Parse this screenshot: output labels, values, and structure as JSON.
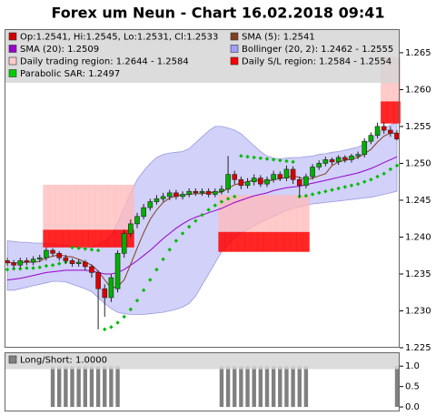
{
  "chart_data": [
    {
      "type": "candlestick",
      "title": "Forex um Neun - Chart 16.02.2018 09:41",
      "ylim": [
        1.225,
        1.2682
      ],
      "yticks": [
        1.225,
        {
          "value": 1.23,
          "label": "1.230"
        },
        1.235,
        {
          "value": 1.24,
          "label": "1.240"
        },
        1.245,
        {
          "value": 1.25,
          "label": "1.250"
        },
        1.255,
        {
          "value": 1.26,
          "label": "1.260"
        },
        1.265
      ],
      "legend": [
        {
          "text": "Op:1.2541, Hi:1.2545, Lo:1.2531, Cl:1.2533",
          "color": "#cc0000"
        },
        {
          "text": "SMA (5): 1.2541",
          "color": "#804020"
        },
        {
          "text": "SMA (20): 1.2509",
          "color": "#9900cc"
        },
        {
          "text": "Bollinger (20, 2): 1.2462 - 1.2555",
          "color": "#a0a0ff"
        },
        {
          "text": "Daily trading region: 1.2644 - 1.2584",
          "color": "#ffcccc"
        },
        {
          "text": "Daily S/L region: 1.2584 - 1.2554",
          "color": "#ff0000"
        },
        {
          "text": "Parabolic SAR: 1.2497",
          "color": "#00cc00"
        }
      ],
      "up_color": "#00b000",
      "down_color": "#dd0000",
      "candles": {
        "open": [
          1.2368,
          1.2365,
          1.2362,
          1.2368,
          1.2366,
          1.237,
          1.2372,
          1.2382,
          1.2378,
          1.2372,
          1.2368,
          1.2364,
          1.2366,
          1.236,
          1.2352,
          1.233,
          1.2318,
          1.233,
          1.2378,
          1.2405,
          1.2418,
          1.2428,
          1.244,
          1.2448,
          1.2452,
          1.2455,
          1.246,
          1.2455,
          1.2458,
          1.2462,
          1.246,
          1.2462,
          1.2458,
          1.2462,
          1.2465,
          1.2485,
          1.2478,
          1.247,
          1.2475,
          1.248,
          1.2472,
          1.2478,
          1.2485,
          1.248,
          1.2492,
          1.2478,
          1.247,
          1.2482,
          1.2495,
          1.25,
          1.2505,
          1.2502,
          1.2508,
          1.2505,
          1.251,
          1.2512,
          1.253,
          1.2538,
          1.255,
          1.2545,
          1.2541
        ],
        "high": [
          1.2372,
          1.2369,
          1.2372,
          1.2372,
          1.2374,
          1.2376,
          1.2386,
          1.2385,
          1.2381,
          1.2376,
          1.2371,
          1.237,
          1.2369,
          1.2363,
          1.2355,
          1.2336,
          1.235,
          1.2382,
          1.241,
          1.2424,
          1.2433,
          1.2445,
          1.2452,
          1.2457,
          1.246,
          1.2464,
          1.2464,
          1.2462,
          1.2466,
          1.2466,
          1.2466,
          1.2466,
          1.2466,
          1.247,
          1.251,
          1.249,
          1.2482,
          1.248,
          1.2485,
          1.2484,
          1.2482,
          1.249,
          1.2489,
          1.2497,
          1.2496,
          1.2482,
          1.2486,
          1.2499,
          1.2504,
          1.2509,
          1.2508,
          1.2511,
          1.2511,
          1.2513,
          1.2516,
          1.2534,
          1.2542,
          1.2555,
          1.2556,
          1.255,
          1.2545
        ],
        "low": [
          1.2361,
          1.2358,
          1.2358,
          1.2362,
          1.2362,
          1.2366,
          1.2368,
          1.2374,
          1.2368,
          1.2364,
          1.236,
          1.236,
          1.2355,
          1.2345,
          1.2275,
          1.2292,
          1.2312,
          1.2325,
          1.2372,
          1.24,
          1.2412,
          1.2424,
          1.2436,
          1.2444,
          1.2448,
          1.245,
          1.2451,
          1.2451,
          1.2454,
          1.2456,
          1.2456,
          1.2454,
          1.2454,
          1.2458,
          1.246,
          1.2472,
          1.2465,
          1.2466,
          1.247,
          1.2468,
          1.2468,
          1.2474,
          1.2476,
          1.2476,
          1.2472,
          1.2455,
          1.2466,
          1.2478,
          1.2491,
          1.2496,
          1.2498,
          1.2498,
          1.2501,
          1.2501,
          1.2506,
          1.2508,
          1.2526,
          1.2534,
          1.254,
          1.2536,
          1.2531
        ],
        "close": [
          1.2365,
          1.2362,
          1.2368,
          1.2366,
          1.237,
          1.2372,
          1.2382,
          1.2378,
          1.2372,
          1.2368,
          1.2364,
          1.2366,
          1.236,
          1.2352,
          1.233,
          1.2318,
          1.2345,
          1.2378,
          1.2405,
          1.2418,
          1.2428,
          1.244,
          1.2448,
          1.2452,
          1.2455,
          1.246,
          1.2455,
          1.2458,
          1.2462,
          1.246,
          1.2462,
          1.2458,
          1.2462,
          1.2465,
          1.2485,
          1.2478,
          1.247,
          1.2475,
          1.248,
          1.2472,
          1.2478,
          1.2485,
          1.248,
          1.2492,
          1.2478,
          1.247,
          1.2482,
          1.2495,
          1.25,
          1.2505,
          1.2502,
          1.2508,
          1.2505,
          1.251,
          1.2512,
          1.253,
          1.2538,
          1.255,
          1.2545,
          1.2541,
          1.2533
        ]
      },
      "sma5": {
        "color": "#804020",
        "values": [
          1.2366,
          1.2365,
          1.2365,
          1.2366,
          1.2366,
          1.2367,
          1.2372,
          1.2374,
          1.2376,
          1.2374,
          1.2373,
          1.237,
          1.2366,
          1.2362,
          1.2354,
          1.2342,
          1.2331,
          1.2333,
          1.2342,
          1.2363,
          1.2385,
          1.2406,
          1.2424,
          1.2437,
          1.2447,
          1.2453,
          1.2456,
          1.2457,
          1.2458,
          1.2459,
          1.2459,
          1.246,
          1.2461,
          1.2461,
          1.2466,
          1.2471,
          1.2473,
          1.2475,
          1.2478,
          1.2476,
          1.2475,
          1.2478,
          1.2479,
          1.2481,
          1.2483,
          1.2481,
          1.2478,
          1.248,
          1.2483,
          1.2486,
          1.2497,
          1.2502,
          1.2504,
          1.2506,
          1.2508,
          1.2513,
          1.2519,
          1.2529,
          1.2537,
          1.2541,
          1.2541
        ]
      },
      "sma20": {
        "color": "#9900cc",
        "values": [
          1.2342,
          1.2343,
          1.2344,
          1.2346,
          1.2348,
          1.235,
          1.2352,
          1.2353,
          1.2354,
          1.2355,
          1.2355,
          1.2355,
          1.2355,
          1.2354,
          1.2352,
          1.235,
          1.235,
          1.2352,
          1.2356,
          1.2362,
          1.2368,
          1.2375,
          1.2382,
          1.239,
          1.2398,
          1.2405,
          1.2412,
          1.2418,
          1.2423,
          1.2427,
          1.243,
          1.2433,
          1.2436,
          1.2439,
          1.2443,
          1.2447,
          1.245,
          1.2453,
          1.2456,
          1.2458,
          1.246,
          1.2463,
          1.2465,
          1.2467,
          1.2468,
          1.2469,
          1.2471,
          1.2473,
          1.2475,
          1.2477,
          1.2479,
          1.2481,
          1.2483,
          1.2485,
          1.2487,
          1.249,
          1.2493,
          1.2497,
          1.2501,
          1.2505,
          1.2509
        ]
      },
      "bollinger": {
        "color": "#ccccf8",
        "line_color": "#9a9ae0",
        "upper": [
          1.2395,
          1.2394,
          1.2393,
          1.2393,
          1.2392,
          1.2392,
          1.2392,
          1.2391,
          1.239,
          1.2389,
          1.2388,
          1.2386,
          1.2385,
          1.2386,
          1.239,
          1.2395,
          1.2402,
          1.242,
          1.244,
          1.246,
          1.2478,
          1.249,
          1.25,
          1.2508,
          1.2512,
          1.2514,
          1.2515,
          1.2516,
          1.252,
          1.2528,
          1.2536,
          1.2544,
          1.255,
          1.255,
          1.2548,
          1.2545,
          1.254,
          1.2532,
          1.2524,
          1.2516,
          1.251,
          1.2507,
          1.2506,
          1.2507,
          1.2508,
          1.2508,
          1.2509,
          1.251,
          1.2512,
          1.2513,
          1.2515,
          1.2516,
          1.2518,
          1.252,
          1.2522,
          1.2526,
          1.2532,
          1.254,
          1.2547,
          1.2552,
          1.2555
        ],
        "lower": [
          1.2328,
          1.2328,
          1.233,
          1.2332,
          1.2334,
          1.2336,
          1.2338,
          1.234,
          1.234,
          1.2339,
          1.2336,
          1.2333,
          1.233,
          1.2326,
          1.2318,
          1.231,
          1.2303,
          1.2298,
          1.2296,
          1.2295,
          1.2295,
          1.2295,
          1.2296,
          1.2297,
          1.2298,
          1.23,
          1.2302,
          1.2305,
          1.231,
          1.232,
          1.2335,
          1.235,
          1.2365,
          1.238,
          1.239,
          1.2398,
          1.2405,
          1.241,
          1.2415,
          1.242,
          1.2424,
          1.2428,
          1.2432,
          1.2436,
          1.2439,
          1.2441,
          1.2443,
          1.2445,
          1.2446,
          1.2447,
          1.2448,
          1.2449,
          1.245,
          1.2451,
          1.2452,
          1.2453,
          1.2454,
          1.2456,
          1.2458,
          1.246,
          1.2462
        ]
      },
      "trading_region": {
        "color": "#ffb8b8",
        "upper": [
          null,
          null,
          null,
          null,
          null,
          null,
          1.2471,
          1.2471,
          1.2471,
          1.2471,
          1.2471,
          1.2471,
          1.2471,
          1.2471,
          1.2471,
          1.2471,
          1.2471,
          1.2471,
          1.2471,
          1.2471,
          null,
          null,
          null,
          null,
          null,
          null,
          null,
          null,
          null,
          null,
          null,
          null,
          null,
          1.2457,
          1.2457,
          1.2457,
          1.2457,
          1.2457,
          1.2457,
          1.2457,
          1.2457,
          1.2457,
          1.2457,
          1.2457,
          1.2457,
          1.2457,
          1.2457,
          null,
          null,
          null,
          null,
          null,
          null,
          null,
          null,
          null,
          null,
          null,
          1.2644,
          1.2644,
          1.2644
        ],
        "lower": [
          null,
          null,
          null,
          null,
          null,
          null,
          1.241,
          1.241,
          1.241,
          1.241,
          1.241,
          1.241,
          1.241,
          1.241,
          1.241,
          1.241,
          1.241,
          1.241,
          1.241,
          1.241,
          null,
          null,
          null,
          null,
          null,
          null,
          null,
          null,
          null,
          null,
          null,
          null,
          null,
          1.2407,
          1.2407,
          1.2407,
          1.2407,
          1.2407,
          1.2407,
          1.2407,
          1.2407,
          1.2407,
          1.2407,
          1.2407,
          1.2407,
          1.2407,
          1.2407,
          null,
          null,
          null,
          null,
          null,
          null,
          null,
          null,
          null,
          null,
          null,
          1.2584,
          1.2584,
          1.2584
        ]
      },
      "sl_region": {
        "color": "#ff0000",
        "upper": [
          null,
          null,
          null,
          null,
          null,
          null,
          1.241,
          1.241,
          1.241,
          1.241,
          1.241,
          1.241,
          1.241,
          1.241,
          1.241,
          1.241,
          1.241,
          1.241,
          1.241,
          1.241,
          null,
          null,
          null,
          null,
          null,
          null,
          null,
          null,
          null,
          null,
          null,
          null,
          null,
          1.2407,
          1.2407,
          1.2407,
          1.2407,
          1.2407,
          1.2407,
          1.2407,
          1.2407,
          1.2407,
          1.2407,
          1.2407,
          1.2407,
          1.2407,
          1.2407,
          null,
          null,
          null,
          null,
          null,
          null,
          null,
          null,
          null,
          null,
          null,
          1.2584,
          1.2584,
          1.2584
        ],
        "lower": [
          null,
          null,
          null,
          null,
          null,
          null,
          1.2386,
          1.2386,
          1.2386,
          1.2386,
          1.2386,
          1.2386,
          1.2386,
          1.2386,
          1.2386,
          1.2386,
          1.2386,
          1.2386,
          1.2386,
          1.2386,
          null,
          null,
          null,
          null,
          null,
          null,
          null,
          null,
          null,
          null,
          null,
          null,
          null,
          1.238,
          1.238,
          1.238,
          1.238,
          1.238,
          1.238,
          1.238,
          1.238,
          1.238,
          1.238,
          1.238,
          1.238,
          1.238,
          1.238,
          null,
          null,
          null,
          null,
          null,
          null,
          null,
          null,
          null,
          null,
          null,
          1.2554,
          1.2554,
          1.2554
        ]
      },
      "sar": {
        "color": "#00bb00",
        "values": [
          1.2356,
          1.2357,
          1.2357,
          1.2358,
          1.2358,
          1.2359,
          1.2361,
          1.2362,
          1.2364,
          1.2366,
          1.2386,
          1.2385,
          1.2384,
          1.2383,
          1.2382,
          1.2275,
          1.2278,
          1.2284,
          1.2292,
          1.2302,
          1.2314,
          1.2328,
          1.2342,
          1.2356,
          1.237,
          1.2383,
          1.2395,
          1.2405,
          1.2414,
          1.2422,
          1.243,
          1.2437,
          1.2443,
          1.2448,
          1.2452,
          1.2455,
          1.251,
          1.2509,
          1.2508,
          1.2507,
          1.2506,
          1.2505,
          1.2504,
          1.2503,
          1.2502,
          1.2455,
          1.2456,
          1.2458,
          1.246,
          1.2462,
          1.2464,
          1.2466,
          1.2468,
          1.247,
          1.2472,
          1.2475,
          1.2478,
          1.2482,
          1.2486,
          1.2492,
          1.2497
        ]
      }
    },
    {
      "type": "bar",
      "legend": [
        {
          "text": "Long/Short: 1.0000",
          "color": "#808080"
        }
      ],
      "color": "#808080",
      "ylim": [
        -0.11,
        1.34
      ],
      "yticks": [
        {
          "value": 0,
          "label": "0.0"
        },
        {
          "value": 0.5,
          "label": "0.5"
        },
        {
          "value": 1,
          "label": "1.0"
        }
      ],
      "values": [
        0,
        0,
        0,
        0,
        0,
        0,
        0,
        1,
        1,
        1,
        1,
        1,
        1,
        1,
        1,
        1,
        1,
        1,
        0,
        0,
        0,
        0,
        0,
        0,
        0,
        0,
        0,
        0,
        0,
        0,
        0,
        0,
        0,
        1,
        1,
        1,
        1,
        1,
        1,
        1,
        1,
        1,
        1,
        1,
        1,
        1,
        1,
        0,
        0,
        0,
        0,
        0,
        0,
        0,
        0,
        0,
        0,
        0,
        0,
        0,
        1
      ]
    }
  ]
}
